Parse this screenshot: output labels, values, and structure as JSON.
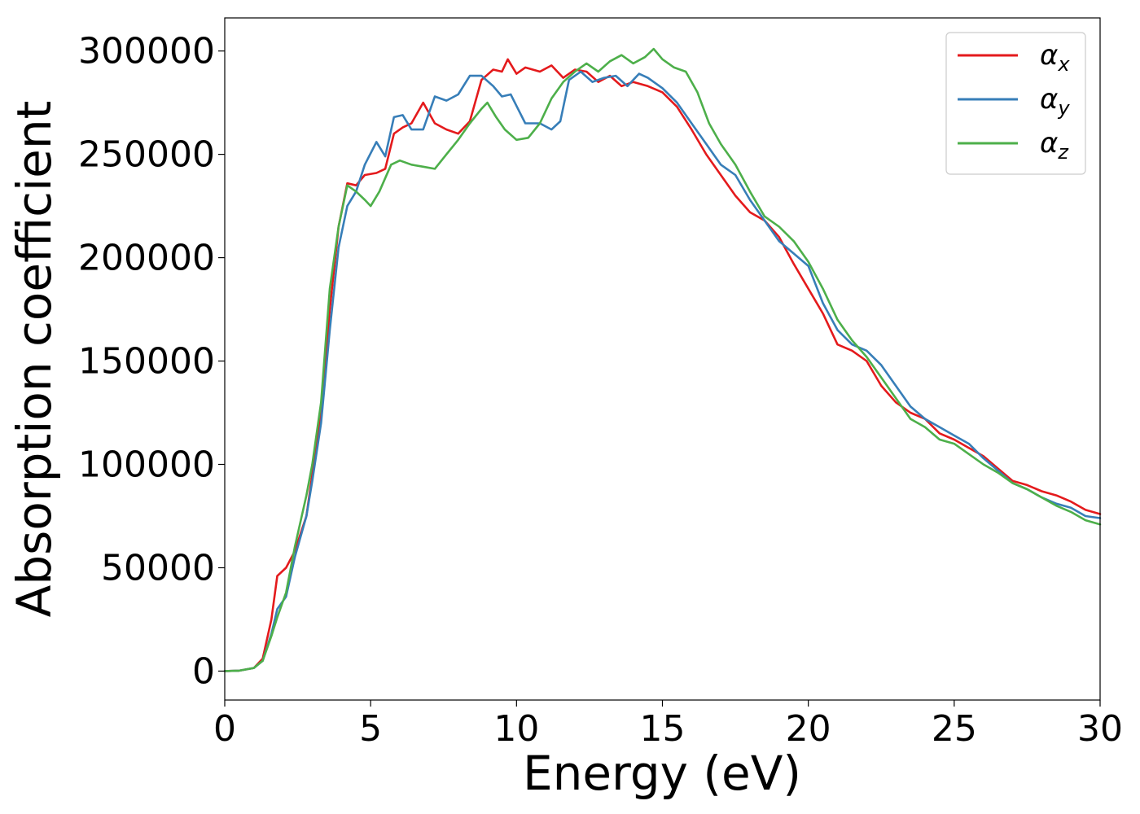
{
  "chart_data": {
    "type": "line",
    "title": "",
    "xlabel": "Energy (eV)",
    "ylabel": "Absorption coefficient",
    "xlim": [
      0,
      30
    ],
    "ylim": [
      -14000,
      316000
    ],
    "xticks": [
      0,
      5,
      10,
      15,
      20,
      25,
      30
    ],
    "xtick_labels": [
      "0",
      "5",
      "10",
      "15",
      "20",
      "25",
      "30"
    ],
    "yticks": [
      0,
      50000,
      100000,
      150000,
      200000,
      250000,
      300000
    ],
    "ytick_labels": [
      "0",
      "50000",
      "100000",
      "150000",
      "200000",
      "250000",
      "300000"
    ],
    "grid": false,
    "legend_position": "top-right",
    "series": [
      {
        "name": "α_x",
        "symbol": "α",
        "subscript": "x",
        "color": "#e41a1c",
        "points": [
          [
            0,
            0
          ],
          [
            0.5,
            200
          ],
          [
            1.0,
            1500
          ],
          [
            1.3,
            6000
          ],
          [
            1.6,
            25000
          ],
          [
            1.8,
            46000
          ],
          [
            2.1,
            50000
          ],
          [
            2.4,
            58000
          ],
          [
            2.8,
            75000
          ],
          [
            3.0,
            95000
          ],
          [
            3.3,
            125000
          ],
          [
            3.6,
            175000
          ],
          [
            3.9,
            215000
          ],
          [
            4.2,
            236000
          ],
          [
            4.5,
            235000
          ],
          [
            4.8,
            240000
          ],
          [
            5.2,
            241000
          ],
          [
            5.5,
            243000
          ],
          [
            5.8,
            260000
          ],
          [
            6.1,
            263000
          ],
          [
            6.4,
            265000
          ],
          [
            6.8,
            275000
          ],
          [
            7.2,
            265000
          ],
          [
            7.6,
            262000
          ],
          [
            8.0,
            260000
          ],
          [
            8.4,
            266000
          ],
          [
            8.8,
            286000
          ],
          [
            9.2,
            291000
          ],
          [
            9.5,
            290000
          ],
          [
            9.7,
            296000
          ],
          [
            10.0,
            289000
          ],
          [
            10.3,
            292000
          ],
          [
            10.8,
            290000
          ],
          [
            11.2,
            293000
          ],
          [
            11.6,
            287000
          ],
          [
            12.0,
            291000
          ],
          [
            12.4,
            290000
          ],
          [
            12.8,
            285000
          ],
          [
            13.2,
            288000
          ],
          [
            13.6,
            283000
          ],
          [
            14.0,
            285000
          ],
          [
            14.5,
            283000
          ],
          [
            15.0,
            280000
          ],
          [
            15.5,
            273000
          ],
          [
            16.0,
            262000
          ],
          [
            16.5,
            250000
          ],
          [
            17.0,
            240000
          ],
          [
            17.5,
            230000
          ],
          [
            18.0,
            222000
          ],
          [
            18.5,
            218000
          ],
          [
            19.0,
            210000
          ],
          [
            19.5,
            197000
          ],
          [
            20.0,
            185000
          ],
          [
            20.5,
            173000
          ],
          [
            21.0,
            158000
          ],
          [
            21.5,
            155000
          ],
          [
            22.0,
            150000
          ],
          [
            22.5,
            138000
          ],
          [
            23.0,
            130000
          ],
          [
            23.5,
            125000
          ],
          [
            24.0,
            122000
          ],
          [
            24.5,
            115000
          ],
          [
            25.0,
            112000
          ],
          [
            25.5,
            108000
          ],
          [
            26.0,
            104000
          ],
          [
            26.5,
            98000
          ],
          [
            27.0,
            92000
          ],
          [
            27.5,
            90000
          ],
          [
            28.0,
            87000
          ],
          [
            28.5,
            85000
          ],
          [
            29.0,
            82000
          ],
          [
            29.5,
            78000
          ],
          [
            30.0,
            76000
          ]
        ]
      },
      {
        "name": "α_y",
        "symbol": "α",
        "subscript": "y",
        "color": "#377eb8",
        "points": [
          [
            0,
            0
          ],
          [
            0.5,
            200
          ],
          [
            1.0,
            1500
          ],
          [
            1.3,
            5000
          ],
          [
            1.6,
            18000
          ],
          [
            1.8,
            30000
          ],
          [
            2.1,
            36000
          ],
          [
            2.4,
            55000
          ],
          [
            2.8,
            75000
          ],
          [
            3.0,
            92000
          ],
          [
            3.3,
            120000
          ],
          [
            3.6,
            165000
          ],
          [
            3.9,
            205000
          ],
          [
            4.2,
            225000
          ],
          [
            4.5,
            232000
          ],
          [
            4.8,
            245000
          ],
          [
            5.2,
            256000
          ],
          [
            5.5,
            249000
          ],
          [
            5.8,
            268000
          ],
          [
            6.1,
            269000
          ],
          [
            6.4,
            262000
          ],
          [
            6.8,
            262000
          ],
          [
            7.2,
            278000
          ],
          [
            7.6,
            276000
          ],
          [
            8.0,
            279000
          ],
          [
            8.4,
            288000
          ],
          [
            8.8,
            288000
          ],
          [
            9.2,
            283000
          ],
          [
            9.5,
            278000
          ],
          [
            9.8,
            279000
          ],
          [
            10.3,
            265000
          ],
          [
            10.8,
            265000
          ],
          [
            11.2,
            262000
          ],
          [
            11.5,
            266000
          ],
          [
            11.8,
            286000
          ],
          [
            12.2,
            290000
          ],
          [
            12.6,
            285000
          ],
          [
            13.0,
            287000
          ],
          [
            13.4,
            288000
          ],
          [
            13.8,
            283000
          ],
          [
            14.2,
            289000
          ],
          [
            14.5,
            287000
          ],
          [
            15.0,
            282000
          ],
          [
            15.5,
            275000
          ],
          [
            16.0,
            265000
          ],
          [
            16.5,
            255000
          ],
          [
            17.0,
            245000
          ],
          [
            17.5,
            240000
          ],
          [
            18.0,
            228000
          ],
          [
            18.5,
            218000
          ],
          [
            19.0,
            208000
          ],
          [
            19.5,
            202000
          ],
          [
            20.0,
            196000
          ],
          [
            20.5,
            178000
          ],
          [
            21.0,
            165000
          ],
          [
            21.5,
            158000
          ],
          [
            22.0,
            155000
          ],
          [
            22.5,
            148000
          ],
          [
            23.0,
            138000
          ],
          [
            23.5,
            128000
          ],
          [
            24.0,
            122000
          ],
          [
            24.5,
            118000
          ],
          [
            25.0,
            114000
          ],
          [
            25.5,
            110000
          ],
          [
            26.0,
            103000
          ],
          [
            26.5,
            97000
          ],
          [
            27.0,
            91000
          ],
          [
            27.5,
            88000
          ],
          [
            28.0,
            84000
          ],
          [
            28.5,
            81000
          ],
          [
            29.0,
            79000
          ],
          [
            29.5,
            75000
          ],
          [
            30.0,
            74000
          ]
        ]
      },
      {
        "name": "α_z",
        "symbol": "α",
        "subscript": "z",
        "color": "#4daf4a",
        "points": [
          [
            0,
            0
          ],
          [
            0.5,
            200
          ],
          [
            1.0,
            1500
          ],
          [
            1.3,
            5000
          ],
          [
            1.6,
            17000
          ],
          [
            1.8,
            26000
          ],
          [
            2.1,
            38000
          ],
          [
            2.4,
            60000
          ],
          [
            2.8,
            85000
          ],
          [
            3.0,
            100000
          ],
          [
            3.3,
            130000
          ],
          [
            3.6,
            185000
          ],
          [
            3.9,
            215000
          ],
          [
            4.2,
            235000
          ],
          [
            4.5,
            232000
          ],
          [
            4.8,
            228000
          ],
          [
            5.0,
            225000
          ],
          [
            5.3,
            232000
          ],
          [
            5.7,
            245000
          ],
          [
            6.0,
            247000
          ],
          [
            6.4,
            245000
          ],
          [
            6.8,
            244000
          ],
          [
            7.2,
            243000
          ],
          [
            7.6,
            250000
          ],
          [
            8.0,
            257000
          ],
          [
            8.4,
            265000
          ],
          [
            8.8,
            272000
          ],
          [
            9.0,
            275000
          ],
          [
            9.3,
            268000
          ],
          [
            9.6,
            262000
          ],
          [
            10.0,
            257000
          ],
          [
            10.4,
            258000
          ],
          [
            10.8,
            265000
          ],
          [
            11.2,
            277000
          ],
          [
            11.6,
            285000
          ],
          [
            12.0,
            290000
          ],
          [
            12.4,
            294000
          ],
          [
            12.8,
            290000
          ],
          [
            13.2,
            295000
          ],
          [
            13.6,
            298000
          ],
          [
            14.0,
            294000
          ],
          [
            14.4,
            297000
          ],
          [
            14.7,
            301000
          ],
          [
            15.0,
            296000
          ],
          [
            15.4,
            292000
          ],
          [
            15.8,
            290000
          ],
          [
            16.2,
            280000
          ],
          [
            16.6,
            265000
          ],
          [
            17.0,
            255000
          ],
          [
            17.5,
            245000
          ],
          [
            18.0,
            232000
          ],
          [
            18.5,
            220000
          ],
          [
            19.0,
            215000
          ],
          [
            19.5,
            208000
          ],
          [
            20.0,
            198000
          ],
          [
            20.5,
            185000
          ],
          [
            21.0,
            170000
          ],
          [
            21.5,
            160000
          ],
          [
            22.0,
            152000
          ],
          [
            22.5,
            142000
          ],
          [
            23.0,
            132000
          ],
          [
            23.5,
            122000
          ],
          [
            24.0,
            118000
          ],
          [
            24.5,
            112000
          ],
          [
            25.0,
            110000
          ],
          [
            25.5,
            105000
          ],
          [
            26.0,
            100000
          ],
          [
            26.5,
            96000
          ],
          [
            27.0,
            91000
          ],
          [
            27.5,
            88000
          ],
          [
            28.0,
            84000
          ],
          [
            28.5,
            80000
          ],
          [
            29.0,
            77000
          ],
          [
            29.5,
            73000
          ],
          [
            30.0,
            71000
          ]
        ]
      }
    ]
  }
}
